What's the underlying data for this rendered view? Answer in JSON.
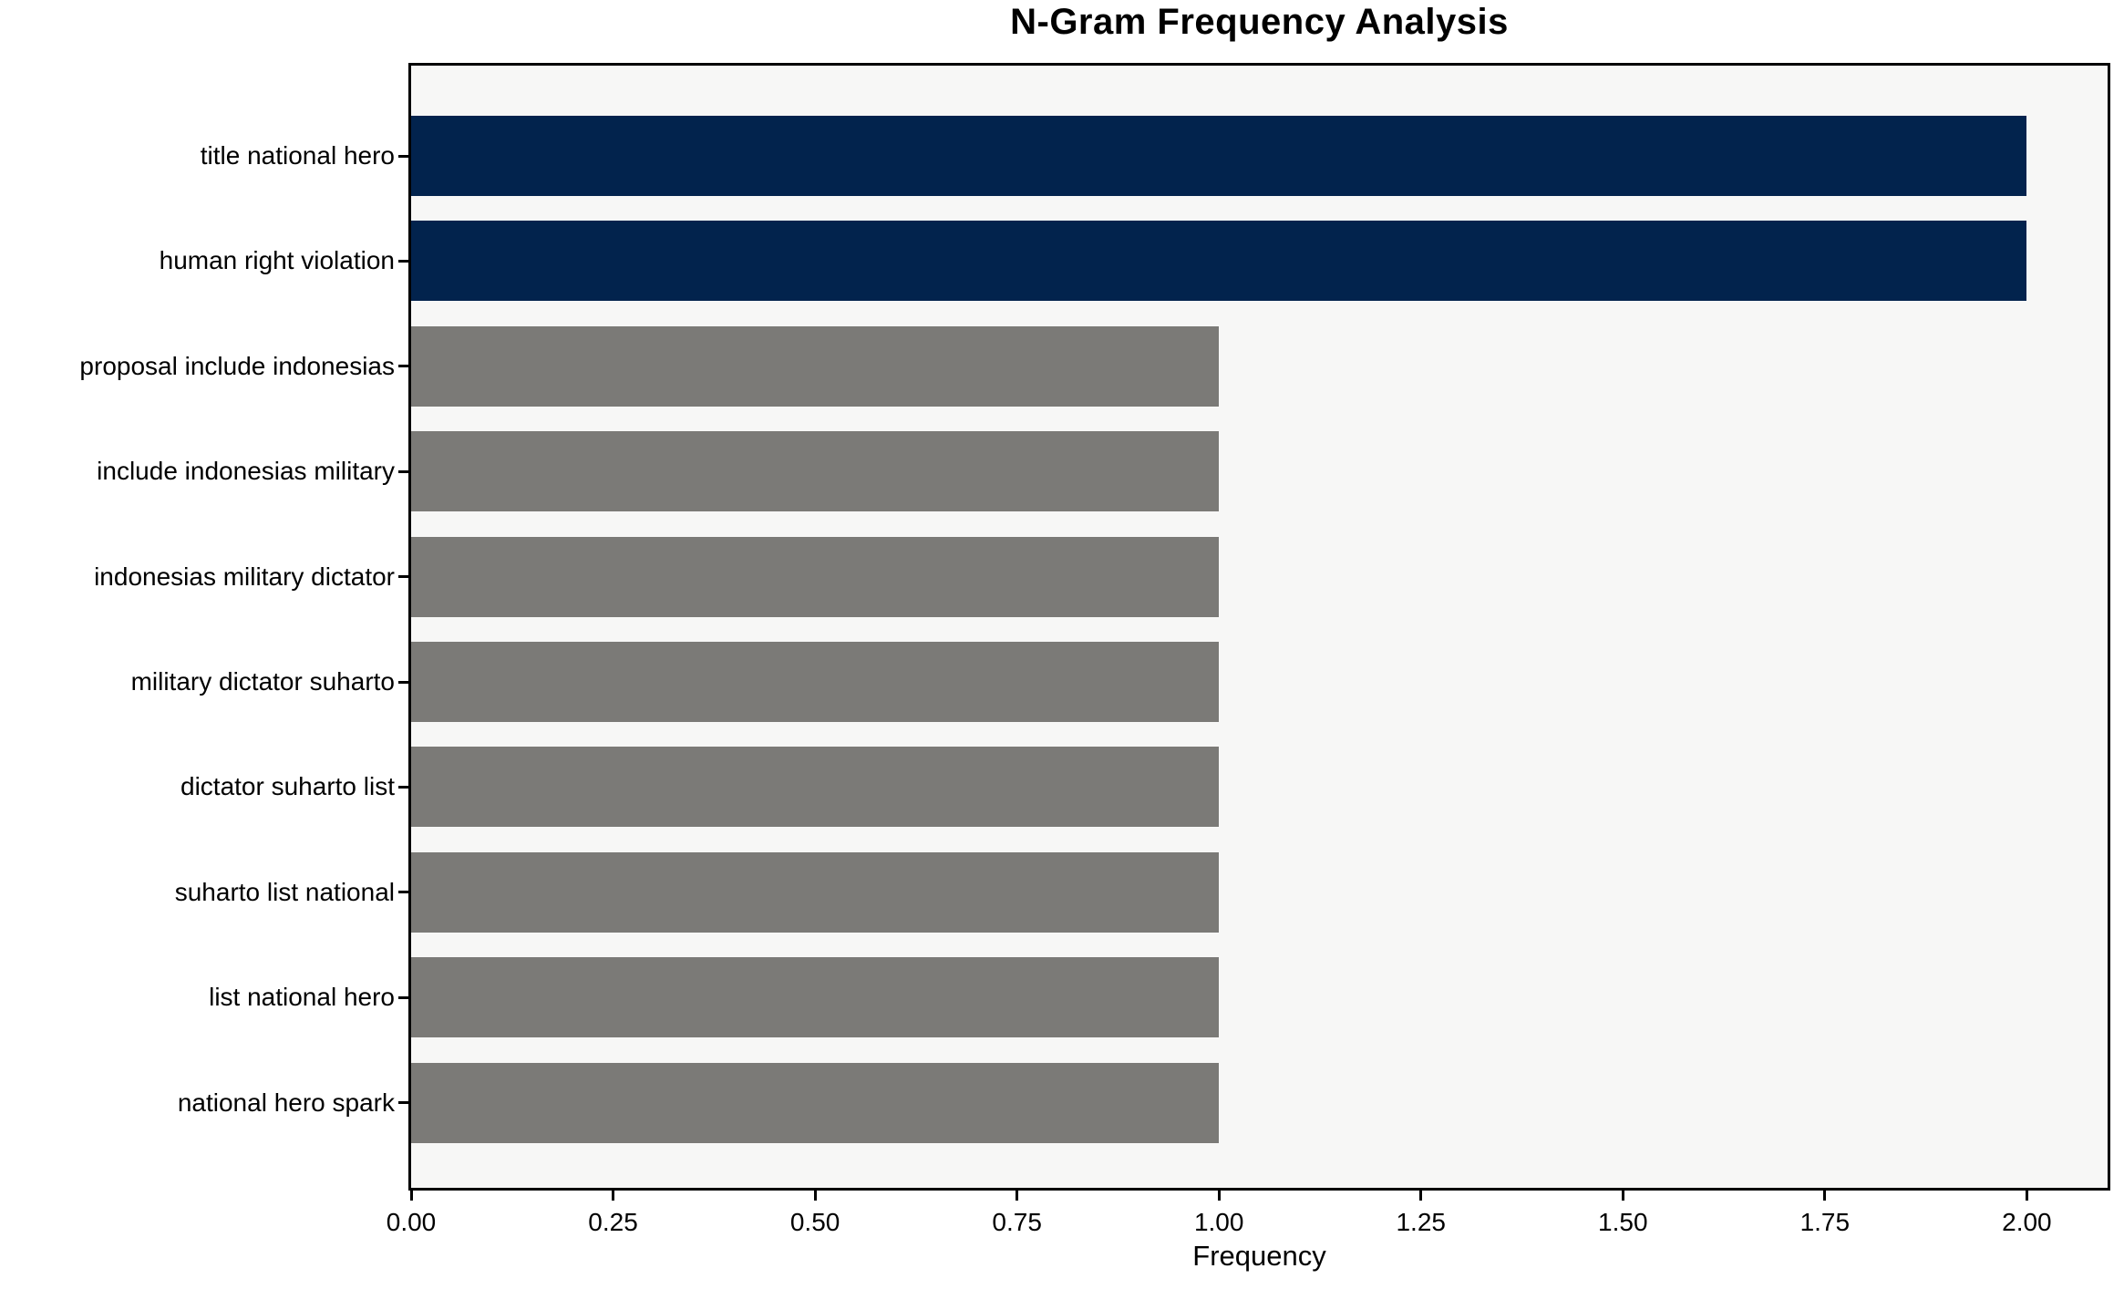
{
  "chart_data": {
    "type": "bar",
    "orientation": "horizontal",
    "title": "N-Gram Frequency Analysis",
    "xlabel": "Frequency",
    "ylabel": "",
    "categories": [
      "title national hero",
      "human right violation",
      "proposal include indonesias",
      "include indonesias military",
      "indonesias military dictator",
      "military dictator suharto",
      "dictator suharto list",
      "suharto list national",
      "list national hero",
      "national hero spark"
    ],
    "values": [
      2,
      2,
      1,
      1,
      1,
      1,
      1,
      1,
      1,
      1
    ],
    "bar_colors": [
      "#02234d",
      "#02234d",
      "#7b7a77",
      "#7b7a77",
      "#7b7a77",
      "#7b7a77",
      "#7b7a77",
      "#7b7a77",
      "#7b7a77",
      "#7b7a77"
    ],
    "xlim": [
      0,
      2.1
    ],
    "xtick_values": [
      0,
      0.25,
      0.5,
      0.75,
      1.0,
      1.25,
      1.5,
      1.75,
      2.0
    ],
    "xtick_labels": [
      "0.00",
      "0.25",
      "0.50",
      "0.75",
      "1.00",
      "1.25",
      "1.50",
      "1.75",
      "2.00"
    ],
    "grid": false,
    "legend": null,
    "plot_background": "#f7f7f6",
    "figure_background": "#ffffff",
    "colors": {
      "high_frequency_bar": "#02234d",
      "low_frequency_bar": "#7b7a77",
      "axis_and_text": "#000000"
    }
  }
}
